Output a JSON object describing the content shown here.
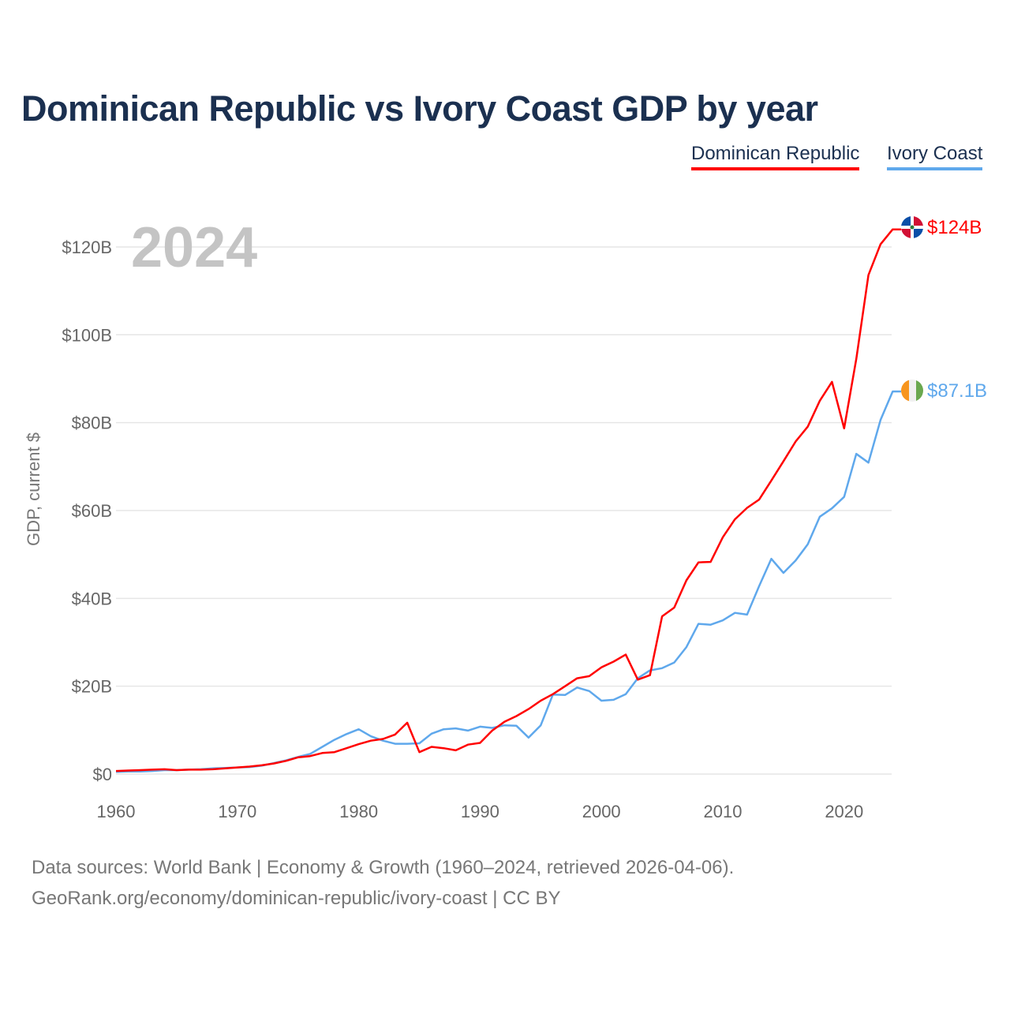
{
  "title": "Dominican Republic vs Ivory Coast GDP by year",
  "legend": [
    "Dominican Republic",
    "Ivory Coast"
  ],
  "year_label": "2024",
  "source_line1": "Data sources: World Bank | Economy & Growth (1960–2024, retrieved 2026-04-06).",
  "source_line2": "GeoRank.org/economy/dominican-republic/ivory-coast | CC BY",
  "chart_data": {
    "type": "line",
    "title": "Dominican Republic vs Ivory Coast GDP by year",
    "xlabel": "",
    "ylabel": "GDP, current $",
    "xlim": [
      1960,
      2024
    ],
    "ylim": [
      0,
      130
    ],
    "yticks": [
      0,
      20,
      40,
      60,
      80,
      100,
      120
    ],
    "ytick_labels": [
      "$0",
      "$20B",
      "$40B",
      "$60B",
      "$80B",
      "$100B",
      "$120B"
    ],
    "xticks": [
      1960,
      1970,
      1980,
      1990,
      2000,
      2010,
      2020
    ],
    "xtick_labels": [
      "1960",
      "1970",
      "1980",
      "1990",
      "2000",
      "2010",
      "2020"
    ],
    "grid": true,
    "legend_position": "top-right",
    "x_start": 1960,
    "series": [
      {
        "name": "Dominican Republic",
        "color": "#ff0000",
        "end_label": "$124B",
        "flag": "dominican-republic",
        "values": [
          0.7,
          0.8,
          0.9,
          1.0,
          1.1,
          0.9,
          1.0,
          1.0,
          1.1,
          1.3,
          1.5,
          1.7,
          2.0,
          2.4,
          3.0,
          3.8,
          4.1,
          4.8,
          5.0,
          5.9,
          6.8,
          7.6,
          8.0,
          9.0,
          11.7,
          5.0,
          6.2,
          5.9,
          5.4,
          6.7,
          7.1,
          9.9,
          11.9,
          13.2,
          14.8,
          16.7,
          18.2,
          20.0,
          21.8,
          22.3,
          24.3,
          25.6,
          27.2,
          21.5,
          22.5,
          35.9,
          37.9,
          44.1,
          48.2,
          48.3,
          53.9,
          58.0,
          60.6,
          62.5,
          66.8,
          71.2,
          75.7,
          79.1,
          85.0,
          89.3,
          78.7,
          94.5,
          113.6,
          120.6,
          124.0
        ]
      },
      {
        "name": "Ivory Coast",
        "color": "#5fa8ec",
        "end_label": "$87.1B",
        "flag": "ivory-coast",
        "values": [
          0.5,
          0.6,
          0.6,
          0.7,
          0.9,
          0.9,
          1.0,
          1.1,
          1.3,
          1.4,
          1.5,
          1.6,
          1.9,
          2.5,
          3.1,
          3.9,
          4.6,
          6.2,
          7.8,
          9.1,
          10.2,
          8.6,
          7.6,
          6.9,
          6.9,
          7.0,
          9.2,
          10.2,
          10.4,
          9.9,
          10.8,
          10.5,
          11.1,
          11.0,
          8.3,
          11.1,
          18.1,
          18.0,
          19.7,
          18.9,
          16.7,
          16.9,
          18.2,
          21.8,
          23.6,
          24.1,
          25.4,
          28.9,
          34.2,
          34.0,
          35.0,
          36.7,
          36.3,
          42.8,
          49.0,
          45.8,
          48.6,
          52.3,
          58.6,
          60.5,
          63.1,
          72.9,
          70.9,
          80.6,
          87.1
        ]
      }
    ]
  }
}
